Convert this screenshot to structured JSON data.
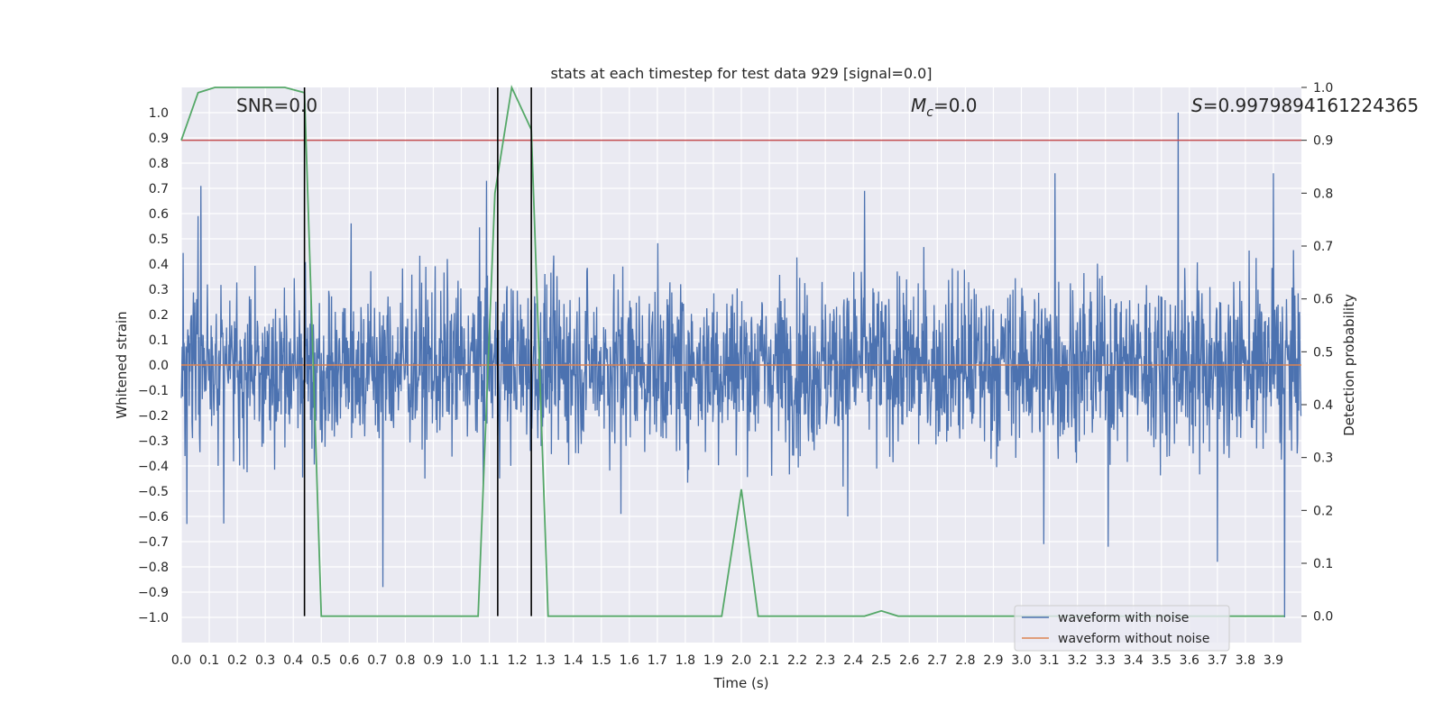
{
  "chart_data": {
    "type": "line",
    "title": "stats at each timestep for test data 929 [signal=0.0]",
    "xlabel": "Time (s)",
    "ylabel": "Whitened strain",
    "y2label": "Detection probability",
    "xlim": [
      0.0,
      4.0
    ],
    "ylim": [
      -1.1,
      1.1
    ],
    "y2lim": [
      -0.05,
      1.0
    ],
    "xticks": [
      "0.0",
      "0.1",
      "0.2",
      "0.3",
      "0.4",
      "0.5",
      "0.6",
      "0.7",
      "0.8",
      "0.9",
      "1.0",
      "1.1",
      "1.2",
      "1.3",
      "1.4",
      "1.5",
      "1.6",
      "1.7",
      "1.8",
      "1.9",
      "2.0",
      "2.1",
      "2.2",
      "2.3",
      "2.4",
      "2.5",
      "2.6",
      "2.7",
      "2.8",
      "2.9",
      "3.0",
      "3.1",
      "3.2",
      "3.3",
      "3.4",
      "3.5",
      "3.6",
      "3.7",
      "3.8",
      "3.9"
    ],
    "yticks": [
      "1.0",
      "0.9",
      "0.8",
      "0.7",
      "0.6",
      "0.5",
      "0.4",
      "0.3",
      "0.2",
      "0.1",
      "0.0",
      "−0.1",
      "−0.2",
      "−0.3",
      "−0.4",
      "−0.5",
      "−0.6",
      "−0.7",
      "−0.8",
      "−0.9",
      "−1.0"
    ],
    "y2ticks": [
      "1.0",
      "0.9",
      "0.8",
      "0.7",
      "0.6",
      "0.5",
      "0.4",
      "0.3",
      "0.2",
      "0.1",
      "0.0"
    ],
    "annotations": {
      "snr": "SNR=0.0",
      "mc_symbol": "M",
      "mc_sub": "c",
      "mc_value": "=0.0",
      "s_symbol": "S",
      "s_value": "=0.9979894161224365"
    },
    "legend": {
      "location": "lower right",
      "entries": [
        {
          "label": "waveform with noise",
          "color": "#4c72b0"
        },
        {
          "label": "waveform without noise",
          "color": "#dd8452"
        }
      ]
    },
    "series": [
      {
        "name": "waveform with noise",
        "color": "#4c72b0",
        "axis": "left",
        "kind": "noise",
        "amplitude_range": [
          -1.0,
          1.0
        ],
        "peaks": [
          [
            0.07,
            0.71
          ],
          [
            0.72,
            -0.88
          ],
          [
            1.09,
            0.73
          ],
          [
            1.13,
            -0.28
          ],
          [
            1.57,
            -0.59
          ],
          [
            2.38,
            -0.6
          ],
          [
            2.44,
            0.69
          ],
          [
            3.08,
            -0.71
          ],
          [
            3.12,
            0.76
          ],
          [
            3.31,
            -0.72
          ],
          [
            3.56,
            1.0
          ],
          [
            3.7,
            -0.78
          ],
          [
            3.9,
            0.76
          ],
          [
            3.94,
            -1.0
          ],
          [
            0.02,
            -0.63
          ],
          [
            0.06,
            0.59
          ]
        ]
      },
      {
        "name": "waveform without noise",
        "color": "#dd8452",
        "axis": "left",
        "x": [
          0.0,
          4.0
        ],
        "y": [
          0.0,
          0.0
        ]
      },
      {
        "name": "detection probability",
        "color": "#55a868",
        "axis": "right",
        "x": [
          0.0,
          0.06,
          0.12,
          0.18,
          0.25,
          0.31,
          0.37,
          0.44,
          0.5,
          0.56,
          0.62,
          0.68,
          0.75,
          0.81,
          0.87,
          0.93,
          1.0,
          1.06,
          1.12,
          1.18,
          1.25,
          1.31,
          1.37,
          1.43,
          1.5,
          1.56,
          1.62,
          1.68,
          1.75,
          1.81,
          1.87,
          1.93,
          2.0,
          2.06,
          2.12,
          2.18,
          2.25,
          2.31,
          2.37,
          2.44,
          2.5,
          2.56,
          2.62,
          2.68,
          2.75,
          2.81,
          2.87,
          2.93,
          3.0,
          3.06,
          3.12,
          3.18,
          3.25,
          3.31,
          3.37,
          3.43,
          3.5,
          3.56,
          3.62,
          3.68,
          3.75,
          3.81,
          3.87,
          3.94
        ],
        "y": [
          0.9,
          0.99,
          1.0,
          1.0,
          1.0,
          1.0,
          1.0,
          0.99,
          0.0,
          0.0,
          0.0,
          0.0,
          0.0,
          0.0,
          0.0,
          0.0,
          0.0,
          0.0,
          0.8,
          1.0,
          0.92,
          0.0,
          0.0,
          0.0,
          0.0,
          0.0,
          0.0,
          0.0,
          0.0,
          0.0,
          0.0,
          0.0,
          0.24,
          0.0,
          0.0,
          0.0,
          0.0,
          0.0,
          0.0,
          0.0,
          0.01,
          0.0,
          0.0,
          0.0,
          0.0,
          0.0,
          0.0,
          0.0,
          0.0,
          0.0,
          0.0,
          0.0,
          0.0,
          0.0,
          0.0,
          0.0,
          0.0,
          0.0,
          0.0,
          0.0,
          0.0,
          0.0,
          0.0,
          0.0
        ]
      }
    ],
    "threshold": {
      "axis": "right",
      "value": 0.9,
      "color": "#c44e52"
    },
    "vlines": {
      "x": [
        0.44,
        1.13,
        1.25
      ],
      "color": "#000000"
    }
  }
}
